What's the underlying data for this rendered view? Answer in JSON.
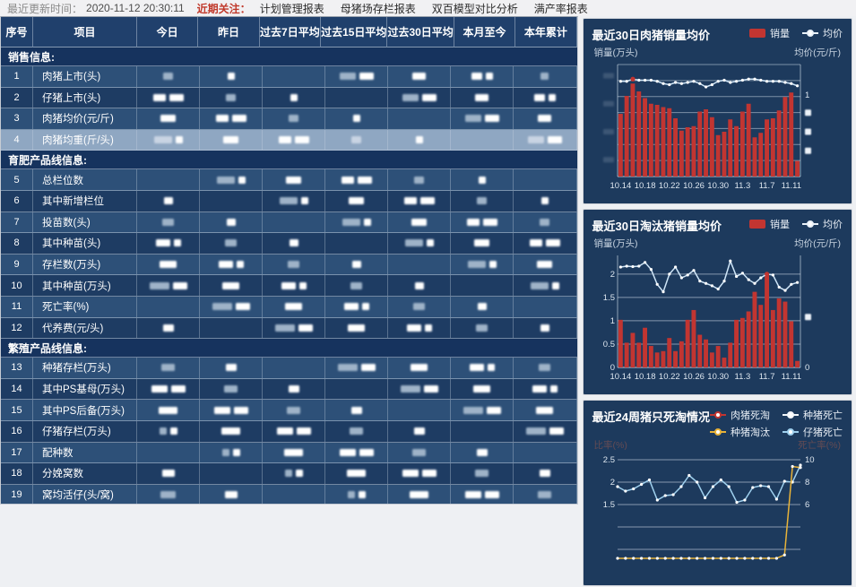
{
  "topbar": {
    "update_label": "最近更新时间：",
    "update_time": "2020-11-12 20:30:11",
    "focus_label": "近期关注：",
    "links": [
      "计划管理报表",
      "母猪场存栏报表",
      "双百模型对比分析",
      "满产率报表"
    ]
  },
  "table": {
    "headers": [
      "序号",
      "项目",
      "今日",
      "昨日",
      "过去7日平均",
      "过去15日平均",
      "过去30日平均",
      "本月至今",
      "本年累计"
    ],
    "values_redacted": true,
    "sections": [
      {
        "title": "销售信息:",
        "rows": [
          {
            "no": "1",
            "label": "肉猪上市(头)"
          },
          {
            "no": "2",
            "label": "仔猪上市(头)"
          },
          {
            "no": "3",
            "label": "肉猪均价(元/斤)"
          },
          {
            "no": "4",
            "label": "肉猪均重(斤/头)",
            "selected": true
          }
        ]
      },
      {
        "title": "育肥产品线信息:",
        "rows": [
          {
            "no": "5",
            "label": "总栏位数"
          },
          {
            "no": "6",
            "label": "其中新增栏位"
          },
          {
            "no": "7",
            "label": "投苗数(头)"
          },
          {
            "no": "8",
            "label": "其中种苗(头)"
          },
          {
            "no": "9",
            "label": "存栏数(万头)"
          },
          {
            "no": "10",
            "label": "其中种苗(万头)"
          },
          {
            "no": "11",
            "label": "死亡率(%)"
          },
          {
            "no": "12",
            "label": "代养费(元/头)"
          }
        ]
      },
      {
        "title": "繁殖产品线信息:",
        "rows": [
          {
            "no": "13",
            "label": "种猪存栏(万头)"
          },
          {
            "no": "14",
            "label": "其中PS基母(万头)"
          },
          {
            "no": "15",
            "label": "其中PS后备(万头)"
          },
          {
            "no": "16",
            "label": "仔猪存栏(万头)"
          },
          {
            "no": "17",
            "label": "配种数"
          },
          {
            "no": "18",
            "label": "分娩窝数"
          },
          {
            "no": "19",
            "label": "窝均活仔(头/窝)"
          }
        ]
      }
    ]
  },
  "colors": {
    "bar_red": "#c23531",
    "line_lightblue": "#cfe6f8",
    "line_blue": "#9fd0ee",
    "line_orange": "#e8b339",
    "line_white": "#f2f6fa",
    "card_bg": "#1d3a5d",
    "selected_row": "#8fa7c2",
    "focus_red": "#c0392b"
  },
  "chart_data": [
    {
      "type": "bar",
      "title": "最近30日肉猪销量均价",
      "legend": [
        {
          "label": "销量",
          "kind": "bar"
        },
        {
          "label": "均价",
          "kind": "line"
        }
      ],
      "left_axis_label": "销量(万头)",
      "right_axis_label": "均价(元/斤)",
      "x_ticks": [
        "10.14",
        "10.18",
        "10.22",
        "10.26",
        "10.30",
        "11.3",
        "11.7",
        "11.11"
      ],
      "x_tick_every": 4,
      "ylim": [
        0,
        10
      ],
      "axis_note": "numeric axis labels redacted in source; bar/line values estimated in relative units",
      "left_ticks_redacted": true,
      "right_ticks": [
        {
          "label": "1",
          "f": 0.27
        },
        {
          "redacted": true,
          "f": 0.43
        },
        {
          "redacted": true,
          "f": 0.6
        },
        {
          "redacted": true,
          "f": 0.77
        }
      ],
      "bars": [
        5.6,
        7.2,
        8.3,
        7.6,
        7.0,
        6.5,
        6.4,
        6.2,
        6.1,
        5.2,
        4.1,
        4.4,
        4.5,
        5.8,
        6.0,
        5.3,
        3.7,
        4.0,
        5.1,
        4.5,
        5.8,
        6.5,
        3.5,
        3.9,
        5.1,
        5.2,
        5.9,
        7.1,
        7.5,
        1.4
      ],
      "line": [
        8.5,
        8.5,
        8.7,
        8.6,
        8.6,
        8.6,
        8.5,
        8.3,
        8.2,
        8.4,
        8.3,
        8.4,
        8.5,
        8.3,
        8.0,
        8.2,
        8.5,
        8.6,
        8.4,
        8.5,
        8.6,
        8.7,
        8.7,
        8.6,
        8.5,
        8.5,
        8.5,
        8.4,
        8.3,
        8.1
      ],
      "highlight_index": 2
    },
    {
      "type": "bar",
      "title": "最近30日淘汰猪销量均价",
      "legend": [
        {
          "label": "销量",
          "kind": "bar"
        },
        {
          "label": "均价",
          "kind": "line"
        }
      ],
      "left_axis_label": "销量(万头)",
      "right_axis_label": "均价(元/斤)",
      "x_ticks": [
        "10.14",
        "10.18",
        "10.22",
        "10.26",
        "10.30",
        "11.3",
        "11.7",
        "11.11"
      ],
      "x_tick_every": 4,
      "ylim": [
        0,
        2.4
      ],
      "left_ticks": [
        {
          "label": "2",
          "v": 2
        },
        {
          "label": "1.5",
          "v": 1.5
        },
        {
          "label": "1",
          "v": 1
        },
        {
          "label": "0.5",
          "v": 0.5
        },
        {
          "label": "0",
          "v": 0
        }
      ],
      "right_ticks": [
        {
          "label": "0",
          "f": 1.0
        },
        {
          "redacted": true,
          "f": 0.55
        }
      ],
      "bars": [
        1.02,
        0.53,
        0.74,
        0.53,
        0.85,
        0.46,
        0.32,
        0.35,
        0.63,
        0.35,
        0.56,
        1.02,
        1.23,
        0.7,
        0.6,
        0.32,
        0.46,
        0.21,
        0.53,
        1.02,
        1.06,
        1.2,
        1.62,
        1.34,
        1.97,
        1.23,
        1.48,
        1.41,
        0.99,
        0.14
      ],
      "line": [
        2.15,
        2.17,
        2.16,
        2.17,
        2.25,
        2.1,
        1.78,
        1.62,
        2.0,
        2.15,
        1.92,
        1.98,
        2.08,
        1.85,
        1.8,
        1.75,
        1.68,
        1.85,
        2.28,
        1.95,
        2.02,
        1.88,
        1.8,
        1.92,
        2.0,
        1.98,
        1.72,
        1.65,
        1.78,
        1.82
      ],
      "highlight_index": 24
    },
    {
      "type": "line",
      "title": "最近24周猪只死淘情况",
      "legend": [
        {
          "label": "肉猪死淘",
          "color": "#c23531"
        },
        {
          "label": "种猪死亡",
          "color": "#f2f6fa"
        },
        {
          "label": "种猪淘汰",
          "color": "#e8b339"
        },
        {
          "label": "仔猪死亡",
          "color": "#9fd0ee"
        }
      ],
      "left_axis_label": "比率(%)",
      "right_axis_label": "死亡率(%)",
      "axis_labels_faint": true,
      "left_ticks": [
        2.5,
        2,
        1.5
      ],
      "right_ticks": [
        10,
        8,
        6
      ],
      "weeks": 24,
      "clipped": "lower part of chart cut off at screenshot bottom edge",
      "series": [
        {
          "name": "仔猪死亡",
          "axis": "left",
          "color": "#9fd0ee",
          "values": [
            1.9,
            1.8,
            1.85,
            1.95,
            2.05,
            1.6,
            1.7,
            1.72,
            1.9,
            2.15,
            2.0,
            1.65,
            1.9,
            2.05,
            1.9,
            1.55,
            1.6,
            1.88,
            1.92,
            1.9,
            1.62,
            2.02,
            2.0,
            2.38
          ]
        },
        {
          "name": "种猪淘汰",
          "axis": "right",
          "color": "#e8b339",
          "values": [
            1.2,
            1.2,
            1.2,
            1.2,
            1.2,
            1.2,
            1.2,
            1.2,
            1.2,
            1.2,
            1.2,
            1.2,
            1.2,
            1.2,
            1.2,
            1.2,
            1.2,
            1.2,
            1.2,
            1.2,
            1.2,
            1.5,
            9.4,
            9.3
          ]
        },
        {
          "name": "肉猪死淘",
          "axis": "left",
          "color": "#c23531",
          "values": [],
          "visible_in_crop": false
        },
        {
          "name": "种猪死亡",
          "axis": "left",
          "color": "#f2f6fa",
          "values": [],
          "visible_in_crop": false
        }
      ]
    }
  ]
}
